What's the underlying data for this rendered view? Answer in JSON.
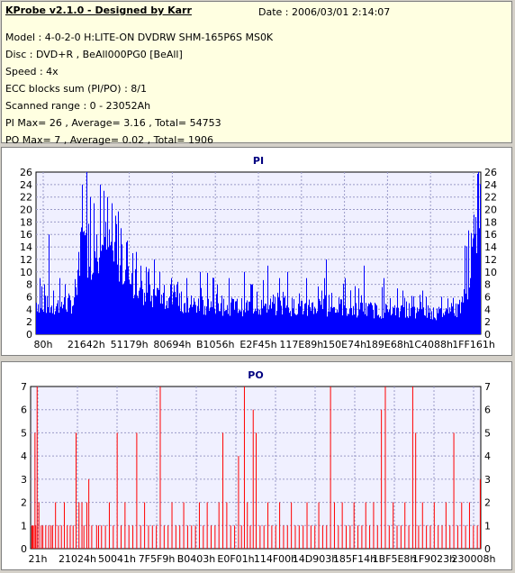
{
  "header": {
    "title": "KProbe v2.1.0 - Designed by Karr",
    "date": "Date : 2006/03/01 2:14:07",
    "lines": [
      "Model : 4-0-2-0 H:LITE-ON DVDRW SHM-165P6S MS0K",
      "Disc : DVD+R , BeAll000PG0 [BeAll]",
      "Speed : 4x",
      "ECC blocks sum (PI/PO) : 8/1",
      "Scanned range : 0 - 23052Ah",
      "PI Max= 26 , Average= 3.16 , Total= 54753",
      "PO Max= 7 , Average= 0.02 , Total= 1906"
    ]
  },
  "colors": {
    "pi": "#0000ff",
    "po": "#ff0000",
    "plot_bg": "#f0f0ff",
    "title": "#000080"
  },
  "chart_data": [
    {
      "type": "bar",
      "title": "PI",
      "ylim": [
        0,
        26
      ],
      "yticks": [
        0,
        2,
        4,
        6,
        8,
        10,
        12,
        14,
        16,
        18,
        20,
        22,
        24,
        26
      ],
      "xticks": [
        "80h",
        "21642h",
        "51179h",
        "80694h",
        "B1056h",
        "E2F45h",
        "117E89h",
        "150E74h",
        "189E68h",
        "1C4088h",
        "1FF161h"
      ],
      "x_range": [
        0,
        230000
      ],
      "baseline": [
        [
          0,
          4
        ],
        [
          8000,
          3.5
        ],
        [
          20000,
          4
        ],
        [
          22000,
          10
        ],
        [
          32000,
          11
        ],
        [
          38000,
          11
        ],
        [
          42000,
          9
        ],
        [
          48000,
          7
        ],
        [
          55000,
          5
        ],
        [
          70000,
          4
        ],
        [
          100000,
          3.5
        ],
        [
          140000,
          3.5
        ],
        [
          180000,
          3
        ],
        [
          205000,
          2.5
        ],
        [
          218000,
          3
        ],
        [
          223000,
          6
        ],
        [
          227000,
          12
        ],
        [
          230000,
          15
        ]
      ],
      "peaks": [
        [
          2000,
          9
        ],
        [
          4000,
          8
        ],
        [
          6500,
          16
        ],
        [
          9000,
          7
        ],
        [
          12000,
          9
        ],
        [
          15000,
          8
        ],
        [
          24000,
          24
        ],
        [
          26000,
          26
        ],
        [
          28000,
          22
        ],
        [
          30000,
          21
        ],
        [
          33000,
          24
        ],
        [
          35000,
          23
        ],
        [
          37000,
          22
        ],
        [
          39000,
          21
        ],
        [
          41000,
          19
        ],
        [
          44000,
          17
        ],
        [
          47000,
          15
        ],
        [
          50000,
          13
        ],
        [
          54000,
          11
        ],
        [
          58000,
          10
        ],
        [
          61000,
          12
        ],
        [
          64000,
          10
        ],
        [
          70000,
          9
        ],
        [
          78000,
          9
        ],
        [
          85000,
          10
        ],
        [
          92000,
          9
        ],
        [
          100000,
          9
        ],
        [
          108000,
          10
        ],
        [
          112000,
          8
        ],
        [
          120000,
          11
        ],
        [
          126000,
          9
        ],
        [
          130000,
          10
        ],
        [
          140000,
          9
        ],
        [
          148000,
          7
        ],
        [
          150000,
          12
        ],
        [
          160000,
          9
        ],
        [
          170000,
          11
        ],
        [
          180000,
          9
        ],
        [
          190000,
          7
        ],
        [
          200000,
          7
        ],
        [
          210000,
          6
        ],
        [
          215000,
          5
        ],
        [
          225000,
          9
        ],
        [
          228000,
          13
        ],
        [
          229500,
          17
        ]
      ]
    },
    {
      "type": "bar",
      "title": "PO",
      "ylim": [
        0,
        7
      ],
      "yticks": [
        0,
        1,
        2,
        3,
        4,
        5,
        6,
        7
      ],
      "xticks": [
        "21h",
        "21024h",
        "50041h",
        "7F5F9h",
        "B0403h",
        "E0F01h",
        "114F00h",
        "14D903h",
        "185F14h",
        "1BF5E8h",
        "1F9023h",
        "230008h"
      ],
      "x_range": [
        0,
        230000
      ],
      "bars": [
        [
          400,
          1
        ],
        [
          700,
          1
        ],
        [
          1200,
          1
        ],
        [
          2000,
          5
        ],
        [
          2400,
          1
        ],
        [
          3100,
          7
        ],
        [
          4000,
          2
        ],
        [
          5200,
          1
        ],
        [
          6000,
          1
        ],
        [
          7500,
          1
        ],
        [
          9000,
          1
        ],
        [
          10200,
          1
        ],
        [
          11000,
          1
        ],
        [
          12500,
          2
        ],
        [
          14000,
          1
        ],
        [
          15500,
          1
        ],
        [
          17000,
          2
        ],
        [
          18500,
          1
        ],
        [
          20000,
          1
        ],
        [
          21500,
          1
        ],
        [
          23000,
          5
        ],
        [
          24500,
          2
        ],
        [
          26000,
          2
        ],
        [
          27000,
          1
        ],
        [
          28500,
          2
        ],
        [
          29500,
          3
        ],
        [
          31000,
          1
        ],
        [
          33500,
          1
        ],
        [
          34500,
          1
        ],
        [
          36000,
          1
        ],
        [
          38000,
          1
        ],
        [
          40000,
          2
        ],
        [
          42000,
          1
        ],
        [
          44000,
          5
        ],
        [
          46000,
          1
        ],
        [
          48000,
          2
        ],
        [
          50000,
          1
        ],
        [
          52000,
          1
        ],
        [
          54000,
          5
        ],
        [
          56000,
          1
        ],
        [
          58000,
          2
        ],
        [
          60000,
          1
        ],
        [
          62000,
          1
        ],
        [
          64000,
          1
        ],
        [
          66000,
          7
        ],
        [
          68000,
          1
        ],
        [
          70000,
          1
        ],
        [
          72000,
          2
        ],
        [
          74000,
          1
        ],
        [
          76000,
          1
        ],
        [
          78000,
          2
        ],
        [
          80000,
          1
        ],
        [
          82000,
          1
        ],
        [
          84000,
          1
        ],
        [
          86000,
          2
        ],
        [
          88000,
          1
        ],
        [
          90000,
          2
        ],
        [
          92000,
          1
        ],
        [
          94000,
          1
        ],
        [
          96000,
          2
        ],
        [
          98000,
          5
        ],
        [
          100000,
          2
        ],
        [
          102000,
          1
        ],
        [
          104000,
          1
        ],
        [
          106000,
          4
        ],
        [
          107500,
          1
        ],
        [
          109000,
          7
        ],
        [
          110500,
          2
        ],
        [
          112000,
          1
        ],
        [
          113500,
          6
        ],
        [
          115000,
          5
        ],
        [
          117000,
          1
        ],
        [
          119000,
          1
        ],
        [
          121000,
          2
        ],
        [
          123000,
          1
        ],
        [
          125000,
          1
        ],
        [
          127000,
          2
        ],
        [
          129000,
          1
        ],
        [
          131000,
          1
        ],
        [
          133000,
          2
        ],
        [
          135000,
          1
        ],
        [
          137000,
          1
        ],
        [
          139000,
          1
        ],
        [
          141000,
          2
        ],
        [
          143000,
          1
        ],
        [
          145000,
          1
        ],
        [
          147000,
          2
        ],
        [
          149000,
          1
        ],
        [
          151000,
          1
        ],
        [
          153000,
          7
        ],
        [
          155000,
          2
        ],
        [
          157000,
          1
        ],
        [
          159000,
          2
        ],
        [
          161000,
          1
        ],
        [
          163000,
          1
        ],
        [
          165000,
          2
        ],
        [
          167000,
          1
        ],
        [
          169000,
          1
        ],
        [
          171000,
          2
        ],
        [
          173000,
          1
        ],
        [
          175000,
          2
        ],
        [
          177000,
          1
        ],
        [
          179000,
          6
        ],
        [
          181000,
          7
        ],
        [
          183000,
          1
        ],
        [
          185000,
          2
        ],
        [
          187000,
          1
        ],
        [
          189000,
          1
        ],
        [
          191000,
          2
        ],
        [
          193000,
          1
        ],
        [
          195000,
          7
        ],
        [
          196500,
          5
        ],
        [
          198000,
          1
        ],
        [
          200000,
          2
        ],
        [
          202000,
          1
        ],
        [
          204000,
          1
        ],
        [
          206000,
          2
        ],
        [
          208000,
          1
        ],
        [
          210000,
          1
        ],
        [
          212000,
          2
        ],
        [
          214000,
          1
        ],
        [
          216000,
          5
        ],
        [
          218000,
          1
        ],
        [
          220000,
          2
        ],
        [
          222000,
          1
        ],
        [
          224000,
          2
        ],
        [
          226000,
          1
        ],
        [
          228000,
          1
        ],
        [
          229500,
          3
        ]
      ]
    }
  ]
}
